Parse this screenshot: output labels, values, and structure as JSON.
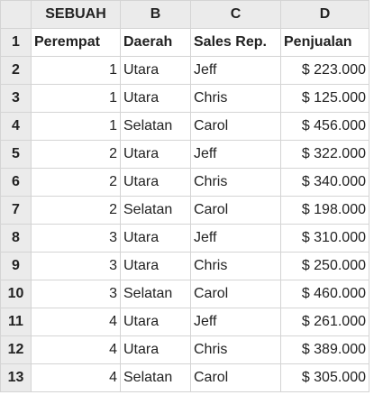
{
  "columns": [
    "SEBUAH",
    "B",
    "C",
    "D"
  ],
  "rows": [
    {
      "n": "1",
      "cells": [
        "Perempat",
        "Daerah",
        "Sales Rep.",
        "Penjualan"
      ]
    },
    {
      "n": "2",
      "cells": [
        "1",
        "Utara",
        "Jeff",
        "$ 223.000"
      ]
    },
    {
      "n": "3",
      "cells": [
        "1",
        "Utara",
        "Chris",
        "$ 125.000"
      ]
    },
    {
      "n": "4",
      "cells": [
        "1",
        "Selatan",
        "Carol",
        "$ 456.000"
      ]
    },
    {
      "n": "5",
      "cells": [
        "2",
        "Utara",
        "Jeff",
        "$ 322.000"
      ]
    },
    {
      "n": "6",
      "cells": [
        "2",
        "Utara",
        "Chris",
        "$ 340.000"
      ]
    },
    {
      "n": "7",
      "cells": [
        "2",
        "Selatan",
        "Carol",
        "$ 198.000"
      ]
    },
    {
      "n": "8",
      "cells": [
        "3",
        "Utara",
        "Jeff",
        "$ 310.000"
      ]
    },
    {
      "n": "9",
      "cells": [
        "3",
        "Utara",
        "Chris",
        "$ 250.000"
      ]
    },
    {
      "n": "10",
      "cells": [
        "3",
        "Selatan",
        "Carol",
        "$ 460.000"
      ]
    },
    {
      "n": "11",
      "cells": [
        "4",
        "Utara",
        "Jeff",
        "$ 261.000"
      ]
    },
    {
      "n": "12",
      "cells": [
        "4",
        "Utara",
        "Chris",
        "$ 389.000"
      ]
    },
    {
      "n": "13",
      "cells": [
        "4",
        "Selatan",
        "Carol",
        "$ 305.000"
      ]
    }
  ]
}
